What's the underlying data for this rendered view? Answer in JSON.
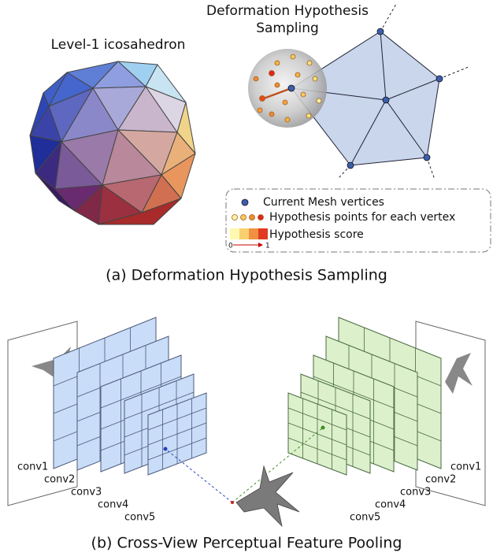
{
  "panel_a": {
    "icosahedron_label": "Level-1 icosahedron",
    "sampling_label": [
      "Deformation Hypothesis",
      "Sampling"
    ],
    "legend": {
      "items": [
        "Current Mesh vertices",
        "Hypothesis points for each vertex",
        "Hypothesis score"
      ],
      "scale_min": 0,
      "scale_max": 1
    },
    "caption": "(a) Deformation Hypothesis Sampling"
  },
  "panel_b": {
    "left_layers": [
      "conv1",
      "conv2",
      "conv3",
      "conv4",
      "conv5"
    ],
    "right_layers": [
      "conv1",
      "conv2",
      "conv3",
      "conv4",
      "conv5"
    ],
    "caption": "(b) Cross-View Perceptual Feature Pooling"
  }
}
